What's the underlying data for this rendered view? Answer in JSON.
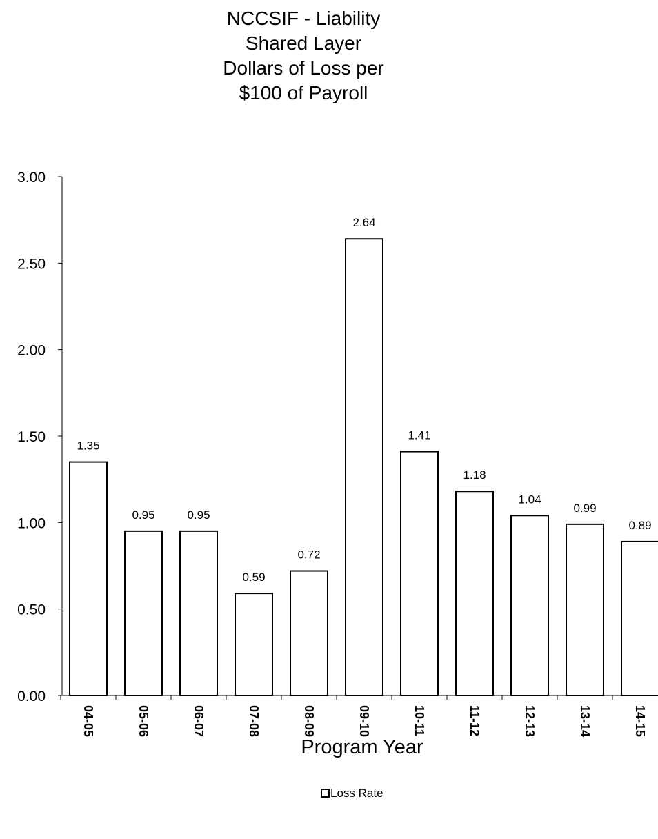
{
  "chart_data": {
    "type": "bar",
    "title_lines": [
      "NCCSIF - Liability",
      "Shared Layer",
      "Dollars of Loss per",
      "$100 of Payroll"
    ],
    "categories": [
      "04-05",
      "05-06",
      "06-07",
      "07-08",
      "08-09",
      "09-10",
      "10-11",
      "11-12",
      "12-13",
      "13-14",
      "14-15"
    ],
    "series": [
      {
        "name": "Loss Rate",
        "values": [
          1.35,
          0.95,
          0.95,
          0.59,
          0.72,
          2.64,
          1.41,
          1.18,
          1.04,
          0.99,
          0.89
        ],
        "data_labels": [
          "1.35",
          "0.95",
          "0.95",
          "0.59",
          "0.72",
          "2.64",
          "1.41",
          "1.18",
          "1.04",
          "0.99",
          "0.89"
        ],
        "fill": "#ffffff",
        "stroke": "#000000"
      }
    ],
    "xlabel": "Program Year",
    "ylabel": "",
    "ylim": [
      0,
      3
    ],
    "yticks": [
      "0.00",
      "0.50",
      "1.00",
      "1.50",
      "2.00",
      "2.50",
      "3.00"
    ],
    "grid": false,
    "legend": {
      "placement": "bottom-center",
      "label": "Loss Rate"
    }
  }
}
